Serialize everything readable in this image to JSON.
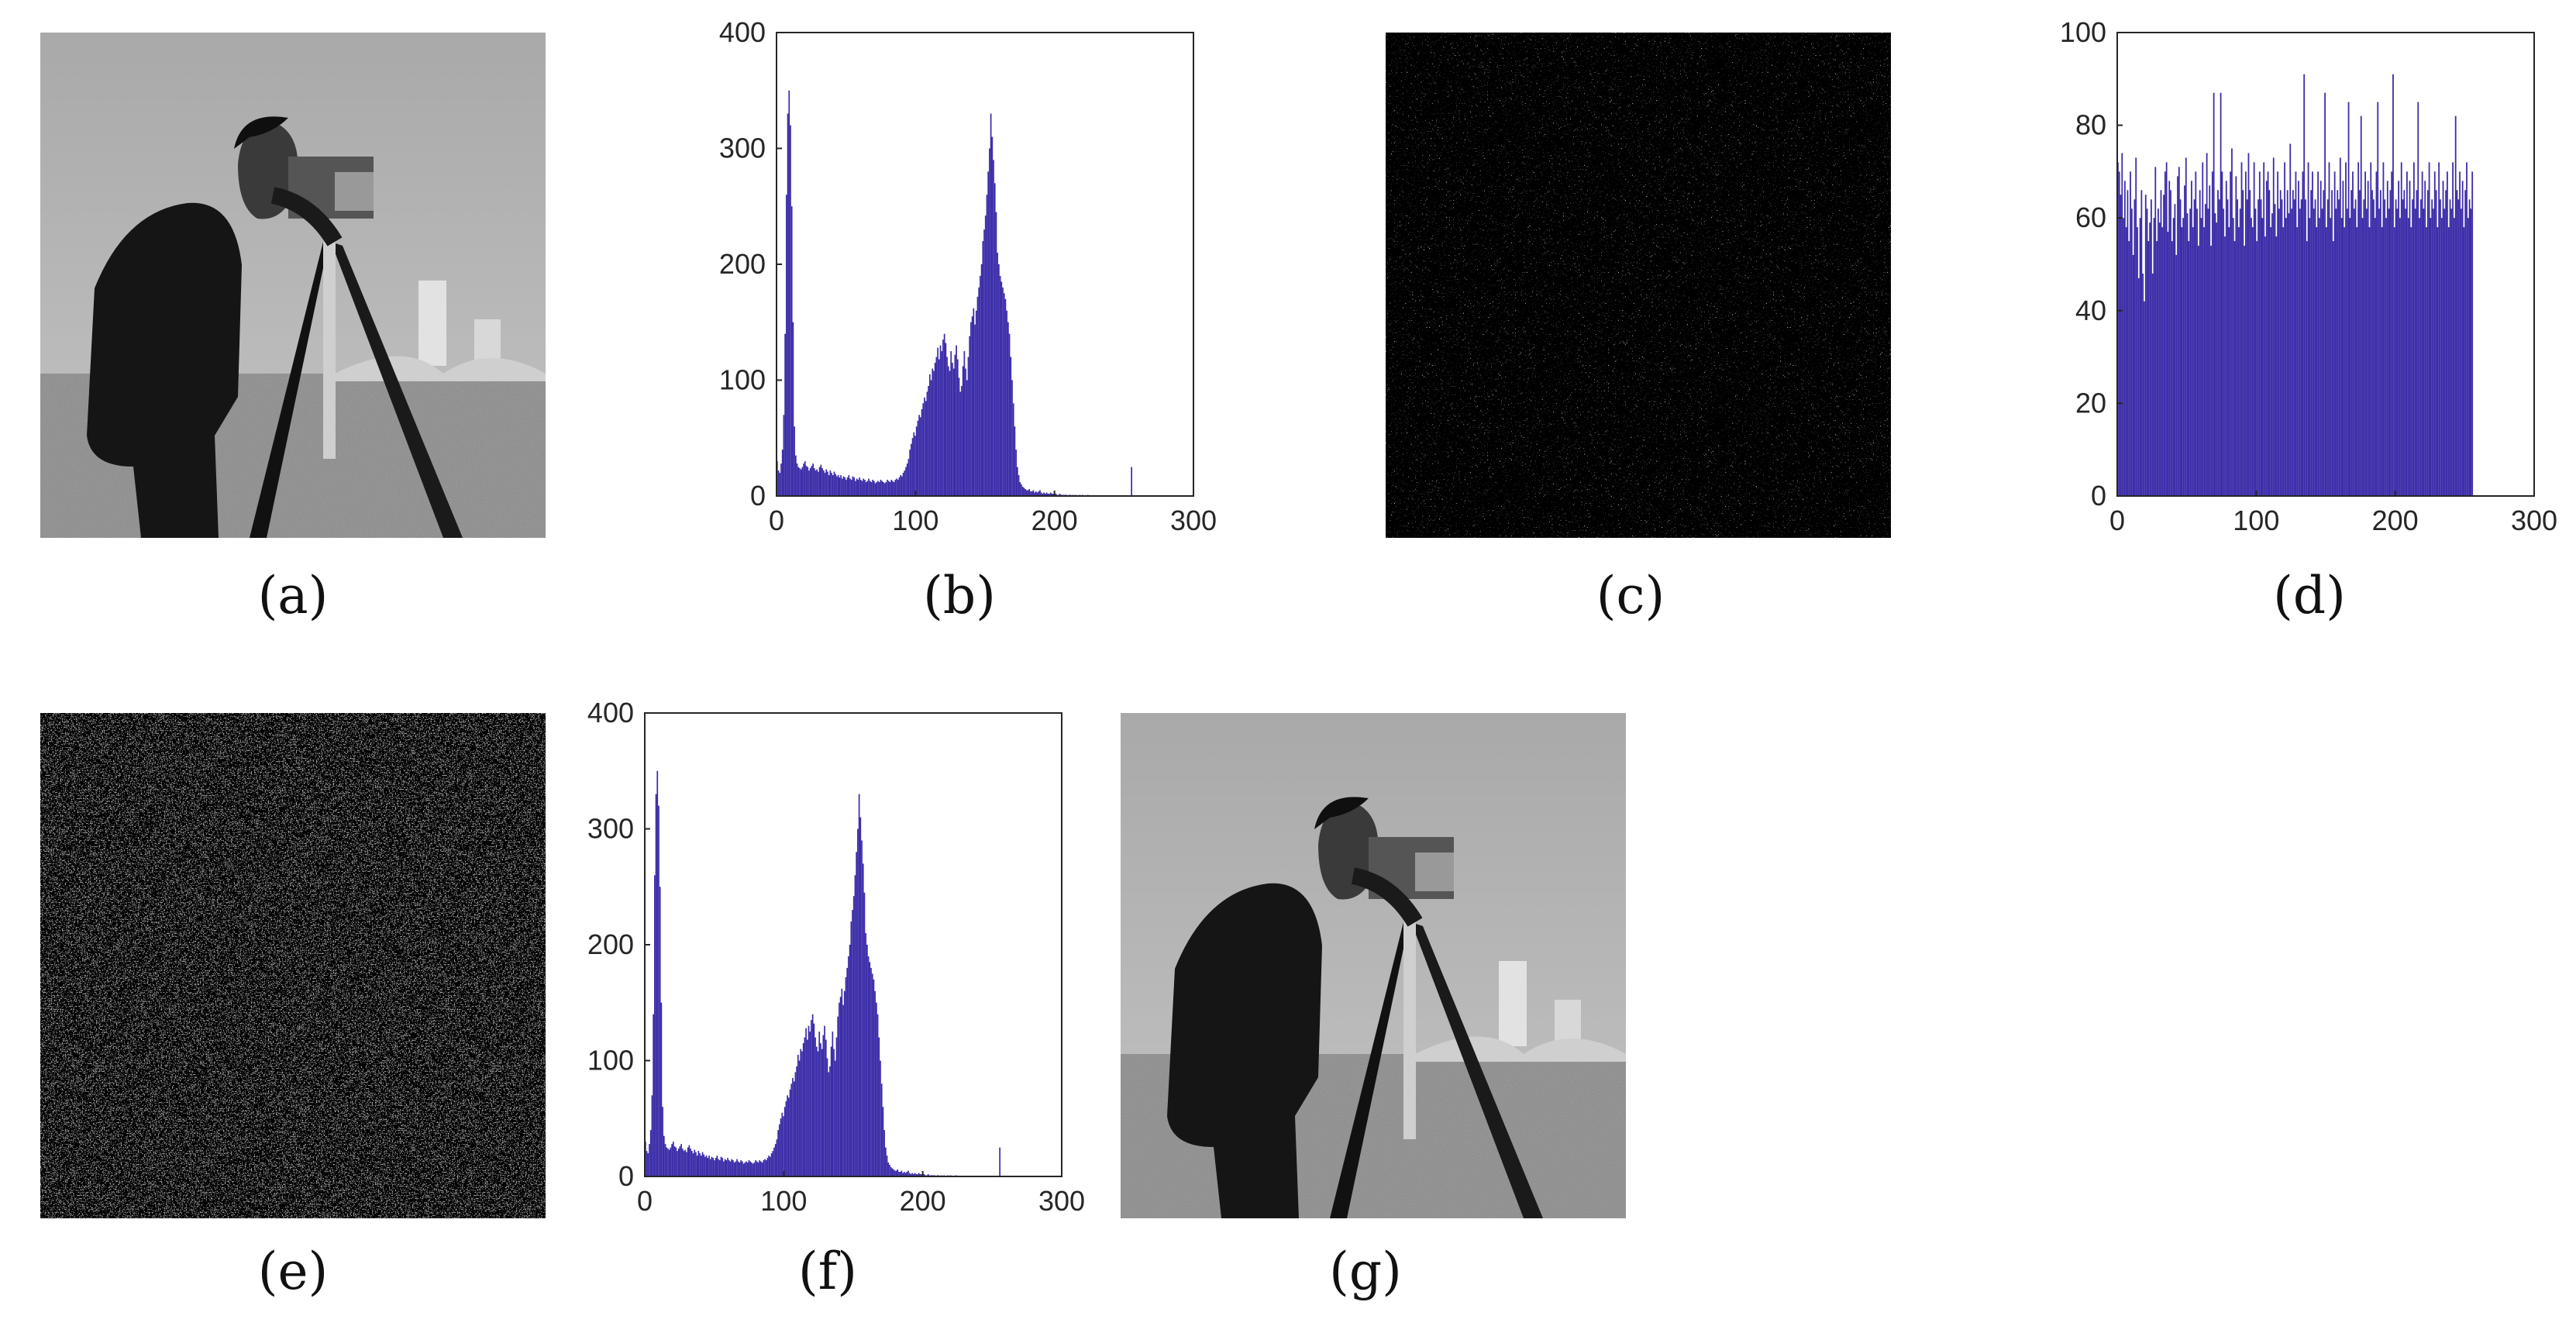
{
  "captions": {
    "a": "(a)",
    "b": "(b)",
    "c": "(c)",
    "d": "(d)",
    "e": "(e)",
    "f": "(f)",
    "g": "(g)"
  },
  "colors": {
    "bar": "#3b2ca8",
    "axis": "#262626"
  },
  "chart_data": [
    {
      "id": "b",
      "type": "bar",
      "title": "",
      "xlabel": "",
      "ylabel": "",
      "xlim": [
        0,
        300
      ],
      "ylim": [
        0,
        400
      ],
      "xticks": [
        0,
        100,
        200,
        300
      ],
      "yticks": [
        0,
        100,
        200,
        300,
        400
      ],
      "x_range": [
        0,
        255
      ],
      "values": [
        30,
        22,
        20,
        28,
        40,
        70,
        140,
        260,
        330,
        350,
        320,
        250,
        150,
        60,
        35,
        28,
        25,
        24,
        23,
        25,
        28,
        30,
        26,
        25,
        22,
        24,
        26,
        28,
        24,
        22,
        23,
        21,
        25,
        27,
        24,
        22,
        20,
        23,
        21,
        18,
        22,
        20,
        18,
        21,
        19,
        17,
        18,
        16,
        18,
        15,
        17,
        16,
        14,
        16,
        18,
        15,
        14,
        17,
        16,
        13,
        15,
        14,
        16,
        14,
        13,
        15,
        14,
        12,
        13,
        15,
        13,
        12,
        14,
        13,
        11,
        12,
        13,
        12,
        14,
        13,
        12,
        11,
        12,
        14,
        13,
        12,
        14,
        13,
        12,
        14,
        15,
        14,
        16,
        18,
        17,
        20,
        22,
        25,
        28,
        32,
        40,
        45,
        50,
        55,
        52,
        60,
        65,
        70,
        68,
        75,
        80,
        85,
        82,
        90,
        95,
        105,
        100,
        110,
        108,
        115,
        120,
        128,
        118,
        130,
        125,
        135,
        140,
        132,
        120,
        112,
        108,
        125,
        115,
        110,
        122,
        130,
        118,
        102,
        90,
        95,
        112,
        125,
        110,
        100,
        120,
        138,
        150,
        155,
        162,
        148,
        160,
        172,
        180,
        190,
        200,
        220,
        230,
        242,
        260,
        280,
        300,
        330,
        310,
        290,
        270,
        245,
        210,
        200,
        190,
        185,
        180,
        175,
        170,
        160,
        150,
        140,
        120,
        100,
        80,
        60,
        40,
        25,
        18,
        12,
        10,
        8,
        7,
        6,
        5,
        5,
        6,
        4,
        4,
        5,
        3,
        4,
        3,
        4,
        5,
        3,
        2,
        3,
        2,
        3,
        2,
        2,
        3,
        2,
        2,
        1,
        2,
        1,
        1,
        2,
        1,
        1,
        1,
        1,
        1,
        0,
        1,
        1,
        0,
        1,
        0,
        1,
        0,
        0,
        1,
        0,
        1,
        0,
        0,
        0,
        1,
        0,
        0,
        0,
        0,
        0,
        0,
        0,
        0,
        0,
        0,
        0,
        0,
        0,
        0,
        0,
        0,
        0,
        0,
        0,
        0,
        0,
        0,
        0,
        0,
        0,
        0,
        0,
        0,
        0,
        0,
        0,
        0,
        25
      ]
    },
    {
      "id": "d",
      "type": "bar",
      "title": "",
      "xlabel": "",
      "ylabel": "",
      "xlim": [
        0,
        300
      ],
      "ylim": [
        0,
        100
      ],
      "xticks": [
        0,
        100,
        200,
        300
      ],
      "yticks": [
        0,
        20,
        40,
        60,
        80,
        100
      ],
      "x_range": [
        0,
        255
      ],
      "values": [
        72,
        70,
        65,
        74,
        60,
        68,
        58,
        66,
        55,
        70,
        62,
        52,
        64,
        73,
        58,
        47,
        60,
        66,
        48,
        42,
        65,
        62,
        55,
        59,
        64,
        48,
        60,
        71,
        55,
        62,
        59,
        66,
        58,
        65,
        70,
        72,
        57,
        68,
        66,
        55,
        60,
        63,
        52,
        69,
        71,
        64,
        58,
        60,
        67,
        73,
        61,
        55,
        62,
        68,
        58,
        64,
        70,
        62,
        54,
        66,
        60,
        72,
        58,
        63,
        74,
        62,
        67,
        54,
        70,
        87,
        61,
        59,
        66,
        64,
        87,
        70,
        62,
        56,
        68,
        64,
        58,
        70,
        75,
        60,
        55,
        69,
        64,
        58,
        62,
        72,
        66,
        54,
        70,
        64,
        74,
        66,
        60,
        58,
        72,
        62,
        55,
        64,
        70,
        64,
        60,
        72,
        56,
        68,
        70,
        66,
        58,
        61,
        73,
        63,
        56,
        70,
        62,
        66,
        64,
        58,
        72,
        60,
        66,
        61,
        76,
        62,
        66,
        64,
        70,
        58,
        68,
        62,
        64,
        70,
        91,
        64,
        55,
        72,
        60,
        66,
        70,
        62,
        64,
        58,
        70,
        60,
        68,
        62,
        66,
        87,
        58,
        64,
        72,
        60,
        66,
        55,
        70,
        62,
        66,
        64,
        73,
        60,
        68,
        58,
        72,
        62,
        85,
        60,
        66,
        70,
        62,
        64,
        58,
        72,
        66,
        82,
        60,
        64,
        70,
        62,
        68,
        58,
        72,
        66,
        64,
        60,
        70,
        85,
        62,
        66,
        58,
        72,
        64,
        60,
        68,
        62,
        66,
        70,
        91,
        58,
        64,
        62,
        68,
        60,
        72,
        64,
        66,
        62,
        70,
        60,
        68,
        58,
        64,
        72,
        62,
        66,
        85,
        60,
        64,
        70,
        62,
        68,
        58,
        66,
        72,
        60,
        64,
        62,
        70,
        66,
        58,
        72,
        64,
        60,
        68,
        62,
        66,
        70,
        58,
        64,
        62,
        72,
        60,
        82,
        66,
        64,
        70,
        62,
        68,
        58,
        66,
        72,
        60,
        64,
        62,
        70
      ]
    },
    {
      "id": "f",
      "type": "bar",
      "title": "",
      "xlabel": "",
      "ylabel": "",
      "xlim": [
        0,
        300
      ],
      "ylim": [
        0,
        400
      ],
      "xticks": [
        0,
        100,
        200,
        300
      ],
      "yticks": [
        0,
        100,
        200,
        300,
        400
      ],
      "x_range": [
        0,
        255
      ],
      "values": [
        30,
        22,
        20,
        28,
        40,
        70,
        140,
        260,
        330,
        350,
        320,
        250,
        150,
        60,
        35,
        28,
        25,
        24,
        23,
        25,
        28,
        30,
        26,
        25,
        22,
        24,
        26,
        28,
        24,
        22,
        23,
        21,
        25,
        27,
        24,
        22,
        20,
        23,
        21,
        18,
        22,
        20,
        18,
        21,
        19,
        17,
        18,
        16,
        18,
        15,
        17,
        16,
        14,
        16,
        18,
        15,
        14,
        17,
        16,
        13,
        15,
        14,
        16,
        14,
        13,
        15,
        14,
        12,
        13,
        15,
        13,
        12,
        14,
        13,
        11,
        12,
        13,
        12,
        14,
        13,
        12,
        11,
        12,
        14,
        13,
        12,
        14,
        13,
        12,
        14,
        15,
        14,
        16,
        18,
        17,
        20,
        22,
        25,
        28,
        32,
        40,
        45,
        50,
        55,
        52,
        60,
        65,
        70,
        68,
        75,
        80,
        85,
        82,
        90,
        95,
        105,
        100,
        110,
        108,
        115,
        120,
        128,
        118,
        130,
        125,
        135,
        140,
        132,
        120,
        112,
        108,
        125,
        115,
        110,
        122,
        130,
        118,
        102,
        90,
        95,
        112,
        125,
        110,
        100,
        120,
        138,
        150,
        155,
        162,
        148,
        160,
        172,
        180,
        190,
        200,
        220,
        230,
        242,
        260,
        280,
        300,
        330,
        310,
        290,
        270,
        245,
        210,
        200,
        190,
        185,
        180,
        175,
        170,
        160,
        150,
        140,
        120,
        100,
        80,
        60,
        40,
        25,
        18,
        12,
        10,
        8,
        7,
        6,
        5,
        5,
        6,
        4,
        4,
        5,
        3,
        4,
        3,
        4,
        5,
        3,
        2,
        3,
        2,
        3,
        2,
        2,
        3,
        2,
        2,
        1,
        2,
        1,
        1,
        2,
        1,
        1,
        1,
        1,
        1,
        0,
        1,
        1,
        0,
        1,
        0,
        1,
        0,
        0,
        1,
        0,
        1,
        0,
        0,
        0,
        1,
        0,
        0,
        0,
        0,
        0,
        0,
        0,
        0,
        0,
        0,
        0,
        0,
        0,
        0,
        0,
        0,
        0,
        0,
        0,
        0,
        0,
        0,
        0,
        0,
        0,
        0,
        0,
        0,
        0,
        0,
        0,
        0,
        25
      ]
    }
  ]
}
